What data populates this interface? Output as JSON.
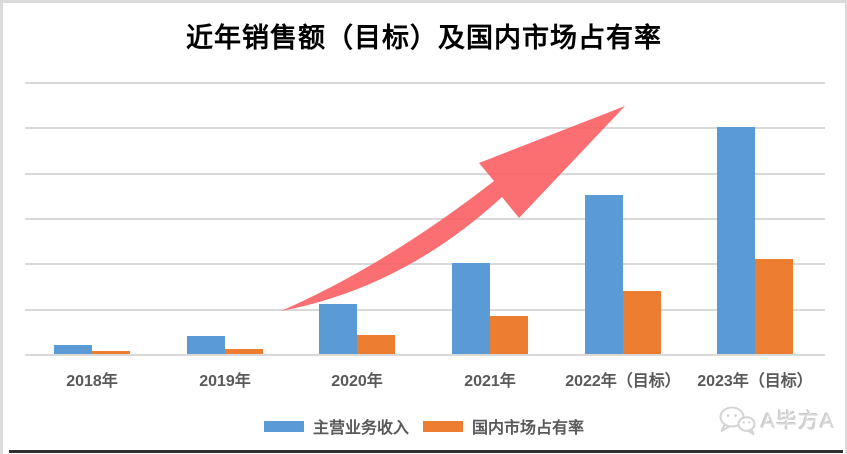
{
  "title": "近年销售额（目标）及国内市场占有率",
  "watermark": {
    "icon": "wechat-icon",
    "text": "A毕方A"
  },
  "chart_data": {
    "type": "bar",
    "title": "近年销售额（目标）及国内市场占有率",
    "categories": [
      "2018年",
      "2019年",
      "2020年",
      "2021年",
      "2022年（目标）",
      "2023年（目标）"
    ],
    "series": [
      {
        "name": "主营业务收入",
        "color": "#5B9BD5",
        "values": [
          0.2,
          0.4,
          1.1,
          2.0,
          3.5,
          5.0
        ]
      },
      {
        "name": "国内市场占有率",
        "color": "#ED7D31",
        "values": [
          0.07,
          0.11,
          0.42,
          0.83,
          1.4,
          2.1
        ]
      }
    ],
    "ylim": [
      0,
      6
    ],
    "gridline_step": 1,
    "grid": true,
    "y_axis_labels_visible": false,
    "value_unit_note": "y-axis has no tick labels; values estimated in gridline units",
    "legend_position": "bottom",
    "annotations": [
      {
        "type": "arrow",
        "color": "#FA5A5E",
        "description": "red curved growth arrow sweeping up from the 2019/2020 baseline to above the 2022 bars"
      }
    ]
  },
  "colors": {
    "bar_blue": "#5B9BD5",
    "bar_orange": "#ED7D31",
    "arrow_red": "#FA5A5E",
    "gridline": "#D9D9D9",
    "axis_line": "#D9D9D9",
    "label_text": "#595959",
    "title_text": "#000000",
    "frame_border": "#DBDBDB",
    "bottom_rule": "#303030",
    "watermark_gray": "#D6D6D6"
  }
}
